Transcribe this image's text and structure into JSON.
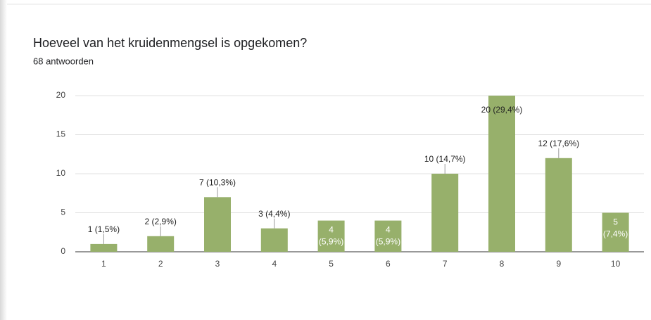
{
  "chart_data": {
    "type": "bar",
    "title": "Hoeveel van het kruidenmengsel is opgekomen?",
    "subtitle": "68 antwoorden",
    "categories": [
      "1",
      "2",
      "3",
      "4",
      "5",
      "6",
      "7",
      "8",
      "9",
      "10"
    ],
    "values": [
      1,
      2,
      7,
      3,
      4,
      4,
      10,
      20,
      12,
      5
    ],
    "value_labels": [
      "1 (1,5%)",
      "2 (2,9%)",
      "7 (10,3%)",
      "3 (4,4%)",
      "4 (5,9%)",
      "4 (5,9%)",
      "10 (14,7%)",
      "20 (29,4%)",
      "12 (17,6%)",
      "5 (7,4%)"
    ],
    "color": "#97b06b",
    "ylim": [
      0,
      20
    ],
    "yticks": [
      0,
      5,
      10,
      15,
      20
    ],
    "grid": true
  }
}
